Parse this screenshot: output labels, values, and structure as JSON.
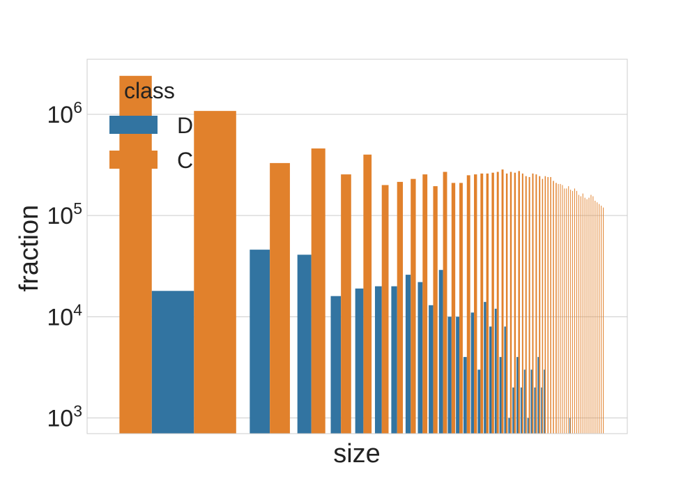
{
  "chart_data": {
    "type": "bar",
    "xlabel": "size",
    "ylabel": "fraction",
    "yscale": "log",
    "ylim": [
      700,
      3500000
    ],
    "yticks": [
      {
        "value": 1000,
        "base": "10",
        "exp": "3"
      },
      {
        "value": 10000,
        "base": "10",
        "exp": "4"
      },
      {
        "value": 100000,
        "base": "10",
        "exp": "5"
      },
      {
        "value": 1000000,
        "base": "10",
        "exp": "6"
      }
    ],
    "grid": true,
    "x_ticklabels_visible": false,
    "legend": {
      "title": "class",
      "placement": "top-left",
      "entries": [
        {
          "label": "D",
          "color": "#3274a1"
        },
        {
          "label": "C",
          "color": "#e1812c"
        }
      ]
    },
    "series": [
      {
        "name": "D",
        "color": "#3274a1",
        "values": [
          null,
          18000,
          46000,
          41000,
          16000,
          19000,
          20000,
          20000,
          26000,
          22000,
          13000,
          29000,
          10000,
          10000,
          4000,
          11000,
          3000,
          14000,
          8000,
          12000,
          4000,
          8000,
          1000,
          2000,
          4000,
          2000,
          3000,
          1000,
          3000,
          2000,
          4000,
          2000,
          3000,
          null,
          null,
          null,
          null,
          null,
          null,
          null,
          null,
          null,
          null,
          1000,
          null,
          null,
          null,
          null,
          null,
          null,
          null,
          null,
          null,
          null,
          null,
          null,
          null,
          null,
          null,
          null
        ]
      },
      {
        "name": "C",
        "color": "#e1812c",
        "values": [
          2400000,
          1080000,
          330000,
          460000,
          255000,
          400000,
          200000,
          215000,
          230000,
          255000,
          195000,
          270000,
          210000,
          210000,
          250000,
          255000,
          260000,
          260000,
          265000,
          270000,
          285000,
          260000,
          270000,
          265000,
          275000,
          260000,
          245000,
          240000,
          260000,
          255000,
          245000,
          230000,
          245000,
          240000,
          240000,
          220000,
          210000,
          205000,
          205000,
          200000,
          185000,
          185000,
          195000,
          180000,
          175000,
          185000,
          175000,
          160000,
          155000,
          165000,
          150000,
          145000,
          150000,
          160000,
          155000,
          140000,
          135000,
          130000,
          125000,
          120000
        ]
      }
    ]
  }
}
